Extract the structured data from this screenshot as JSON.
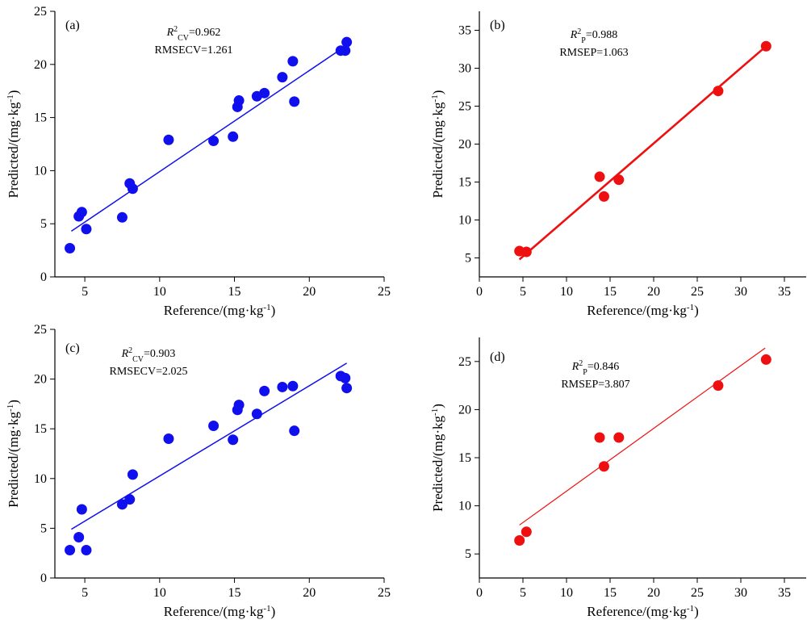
{
  "chart_data": [
    {
      "type": "scatter",
      "panel_label": "(a)",
      "xlabel": "Reference/(mg·kg-1)",
      "ylabel": "Predicted/(mg·kg-1)",
      "xlim": [
        3,
        25
      ],
      "ylim": [
        0,
        25
      ],
      "xticks": [
        5,
        10,
        15,
        20,
        25
      ],
      "yticks": [
        0,
        5,
        10,
        15,
        20,
        25
      ],
      "color": "#1010ee",
      "stat_r2": {
        "symbol": "R",
        "sup": "2",
        "sub": "CV",
        "value": "=0.962"
      },
      "stat_rmse": "RMSECV=1.261",
      "fit_line": {
        "x": [
          4.1,
          22.5
        ],
        "y": [
          4.3,
          21.8
        ]
      },
      "points": [
        {
          "x": 4.0,
          "y": 2.7
        },
        {
          "x": 4.6,
          "y": 5.7
        },
        {
          "x": 4.8,
          "y": 6.1
        },
        {
          "x": 5.1,
          "y": 4.5
        },
        {
          "x": 7.5,
          "y": 5.6
        },
        {
          "x": 8.0,
          "y": 8.8
        },
        {
          "x": 8.2,
          "y": 8.3
        },
        {
          "x": 10.6,
          "y": 12.9
        },
        {
          "x": 13.6,
          "y": 12.8
        },
        {
          "x": 14.9,
          "y": 13.2
        },
        {
          "x": 15.2,
          "y": 16.0
        },
        {
          "x": 15.3,
          "y": 16.6
        },
        {
          "x": 16.5,
          "y": 17.0
        },
        {
          "x": 17.0,
          "y": 17.3
        },
        {
          "x": 18.2,
          "y": 18.8
        },
        {
          "x": 18.9,
          "y": 20.3
        },
        {
          "x": 19.0,
          "y": 16.5
        },
        {
          "x": 22.1,
          "y": 21.3
        },
        {
          "x": 22.4,
          "y": 21.3
        },
        {
          "x": 22.5,
          "y": 22.1
        }
      ]
    },
    {
      "type": "scatter",
      "panel_label": "(b)",
      "xlabel": "Reference/(mg·kg-1)",
      "ylabel": "Predicted/(mg·kg-1)",
      "xlim": [
        0,
        37.5
      ],
      "ylim": [
        2.5,
        37.5
      ],
      "xticks": [
        0,
        5,
        10,
        15,
        20,
        25,
        30,
        35
      ],
      "yticks": [
        5,
        10,
        15,
        20,
        25,
        30,
        35
      ],
      "color": "#ee1010",
      "stat_r2": {
        "symbol": "R",
        "sup": "2",
        "sub": "P",
        "value": "=0.988"
      },
      "stat_rmse": "RMSEP=1.063",
      "fit_line": {
        "x": [
          4.6,
          32.8
        ],
        "y": [
          4.8,
          32.8
        ]
      },
      "points": [
        {
          "x": 4.6,
          "y": 5.9
        },
        {
          "x": 5.4,
          "y": 5.8
        },
        {
          "x": 13.8,
          "y": 15.7
        },
        {
          "x": 14.3,
          "y": 13.1
        },
        {
          "x": 16.0,
          "y": 15.3
        },
        {
          "x": 27.4,
          "y": 27.0
        },
        {
          "x": 32.9,
          "y": 32.9
        }
      ]
    },
    {
      "type": "scatter",
      "panel_label": "(c)",
      "xlabel": "Reference/(mg·kg-1)",
      "ylabel": "Predicted/(mg·kg-1)",
      "xlim": [
        3,
        25
      ],
      "ylim": [
        0,
        25
      ],
      "xticks": [
        5,
        10,
        15,
        20,
        25
      ],
      "yticks": [
        0,
        5,
        10,
        15,
        20,
        25
      ],
      "color": "#1010ee",
      "stat_r2": {
        "symbol": "R",
        "sup": "2",
        "sub": "CV",
        "value": "=0.903"
      },
      "stat_rmse": "RMSECV=2.025",
      "fit_line": {
        "x": [
          4.1,
          22.5
        ],
        "y": [
          4.9,
          21.6
        ]
      },
      "points": [
        {
          "x": 4.0,
          "y": 2.8
        },
        {
          "x": 4.6,
          "y": 4.1
        },
        {
          "x": 4.8,
          "y": 6.9
        },
        {
          "x": 5.1,
          "y": 2.8
        },
        {
          "x": 7.5,
          "y": 7.4
        },
        {
          "x": 8.0,
          "y": 7.9
        },
        {
          "x": 8.2,
          "y": 10.4
        },
        {
          "x": 10.6,
          "y": 14.0
        },
        {
          "x": 13.6,
          "y": 15.3
        },
        {
          "x": 14.9,
          "y": 13.9
        },
        {
          "x": 15.2,
          "y": 16.9
        },
        {
          "x": 15.3,
          "y": 17.4
        },
        {
          "x": 16.5,
          "y": 16.5
        },
        {
          "x": 17.0,
          "y": 18.8
        },
        {
          "x": 18.2,
          "y": 19.2
        },
        {
          "x": 18.9,
          "y": 19.3
        },
        {
          "x": 19.0,
          "y": 14.8
        },
        {
          "x": 22.1,
          "y": 20.3
        },
        {
          "x": 22.4,
          "y": 20.1
        },
        {
          "x": 22.5,
          "y": 19.1
        }
      ]
    },
    {
      "type": "scatter",
      "panel_label": "(d)",
      "xlabel": "Reference/(mg·kg-1)",
      "ylabel": "Predicted/(mg·kg-1)",
      "xlim": [
        0,
        37.5
      ],
      "ylim": [
        2.5,
        27.5
      ],
      "xticks": [
        0,
        5,
        10,
        15,
        20,
        25,
        30,
        35
      ],
      "yticks": [
        5,
        10,
        15,
        20,
        25
      ],
      "color": "#ee1010",
      "stat_r2": {
        "symbol": "R",
        "sup": "2",
        "sub": "P",
        "value": "=0.846"
      },
      "stat_rmse": "RMSEP=3.807",
      "fit_line": {
        "x": [
          4.6,
          32.8
        ],
        "y": [
          8.0,
          26.4
        ]
      },
      "points": [
        {
          "x": 4.6,
          "y": 6.4
        },
        {
          "x": 5.4,
          "y": 7.3
        },
        {
          "x": 13.8,
          "y": 17.1
        },
        {
          "x": 14.3,
          "y": 14.1
        },
        {
          "x": 16.0,
          "y": 17.1
        },
        {
          "x": 27.4,
          "y": 22.5
        },
        {
          "x": 32.9,
          "y": 25.2
        }
      ]
    }
  ]
}
